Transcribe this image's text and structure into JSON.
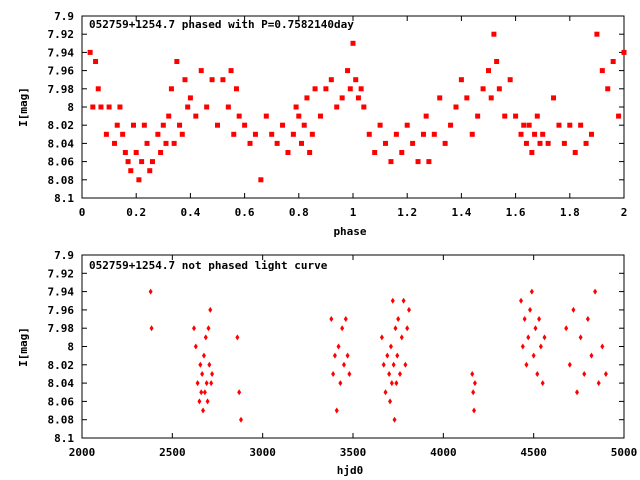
{
  "chart_data": [
    {
      "type": "scatter",
      "title": "052759+1254.7 phased with P=0.7582140day",
      "xlabel": "phase",
      "ylabel": "I[mag]",
      "xlim": [
        0,
        2
      ],
      "ylim": [
        8.1,
        7.9
      ],
      "y_inverted": true,
      "xticks": [
        "0",
        "0.2",
        "0.4",
        "0.6",
        "0.8",
        "1",
        "1.2",
        "1.4",
        "1.6",
        "1.8",
        "2"
      ],
      "yticks": [
        "7.9",
        "7.92",
        "7.94",
        "7.96",
        "7.98",
        "8",
        "8.02",
        "8.04",
        "8.06",
        "8.08",
        "8.1"
      ],
      "marker_color": "#ff0000",
      "series": [
        {
          "x": [
            0.03,
            0.04,
            0.05,
            0.06,
            0.07,
            0.09,
            0.1,
            0.12,
            0.13,
            0.14,
            0.15,
            0.16,
            0.17,
            0.18,
            0.19,
            0.2,
            0.21,
            0.22,
            0.23,
            0.24,
            0.25,
            0.26,
            0.28,
            0.29,
            0.3,
            0.31,
            0.32,
            0.33,
            0.34,
            0.35,
            0.36,
            0.37,
            0.38,
            0.39,
            0.4,
            0.42,
            0.44,
            0.46,
            0.48,
            0.5,
            0.52,
            0.54,
            0.55,
            0.56,
            0.57,
            0.58,
            0.6,
            0.62,
            0.64,
            0.66,
            0.68,
            0.7,
            0.72,
            0.74,
            0.76,
            0.78,
            0.79,
            0.8,
            0.81,
            0.82,
            0.83,
            0.84,
            0.85,
            0.86,
            0.88,
            0.9,
            0.92,
            0.94,
            0.96,
            0.98,
            0.99,
            1.0,
            1.01,
            1.02,
            1.03,
            1.04,
            1.06,
            1.08,
            1.1,
            1.12,
            1.14,
            1.16,
            1.18,
            1.2,
            1.22,
            1.24,
            1.26,
            1.27,
            1.28,
            1.3,
            1.32,
            1.34,
            1.36,
            1.38,
            1.4,
            1.42,
            1.44,
            1.46,
            1.48,
            1.5,
            1.51,
            1.52,
            1.53,
            1.54,
            1.56,
            1.58,
            1.6,
            1.62,
            1.63,
            1.64,
            1.65,
            1.66,
            1.67,
            1.68,
            1.69,
            1.7,
            1.72,
            1.74,
            1.76,
            1.78,
            1.8,
            1.82,
            1.84,
            1.86,
            1.88,
            1.9,
            1.92,
            1.94,
            1.96,
            1.98,
            2.0
          ],
          "y": [
            7.94,
            8.0,
            7.95,
            7.98,
            8.0,
            8.03,
            8.0,
            8.04,
            8.02,
            8.0,
            8.03,
            8.05,
            8.06,
            8.07,
            8.02,
            8.05,
            8.08,
            8.06,
            8.02,
            8.04,
            8.07,
            8.06,
            8.03,
            8.05,
            8.02,
            8.04,
            8.01,
            7.98,
            8.04,
            7.95,
            8.02,
            8.03,
            7.97,
            8.0,
            7.99,
            8.01,
            7.96,
            8.0,
            7.97,
            8.02,
            7.97,
            8.0,
            7.96,
            8.03,
            7.98,
            8.01,
            8.02,
            8.04,
            8.03,
            8.08,
            8.01,
            8.03,
            8.04,
            8.02,
            8.05,
            8.03,
            8.0,
            8.01,
            8.04,
            8.02,
            7.99,
            8.05,
            8.03,
            7.98,
            8.01,
            7.98,
            7.97,
            8.0,
            7.99,
            7.96,
            7.98,
            7.93,
            7.97,
            7.99,
            7.98,
            8.0,
            8.03,
            8.05,
            8.02,
            8.04,
            8.06,
            8.03,
            8.05,
            8.02,
            8.04,
            8.06,
            8.03,
            8.01,
            8.06,
            8.03,
            7.99,
            8.04,
            8.02,
            8.0,
            7.97,
            7.99,
            8.03,
            8.01,
            7.98,
            7.96,
            7.99,
            7.92,
            7.95,
            7.98,
            8.01,
            7.97,
            8.01,
            8.03,
            8.02,
            8.04,
            8.02,
            8.05,
            8.03,
            8.01,
            8.04,
            8.03,
            8.04,
            7.99,
            8.02,
            8.04,
            8.02,
            8.05,
            8.02,
            8.04,
            8.03,
            7.92,
            7.96,
            7.98,
            7.95,
            8.01,
            7.94
          ]
        }
      ]
    },
    {
      "type": "scatter",
      "title": "052759+1254.7 not phased light curve",
      "xlabel": "hjd0",
      "ylabel": "I[mag]",
      "xlim": [
        2000,
        5000
      ],
      "ylim": [
        8.1,
        7.9
      ],
      "y_inverted": true,
      "xticks": [
        "2000",
        "2500",
        "3000",
        "3500",
        "4000",
        "4500",
        "5000"
      ],
      "yticks": [
        "7.9",
        "7.92",
        "7.94",
        "7.96",
        "7.98",
        "8",
        "8.02",
        "8.04",
        "8.06",
        "8.08",
        "8.1"
      ],
      "marker_color": "#ff0000",
      "series": [
        {
          "x": [
            2380,
            2385,
            2620,
            2630,
            2640,
            2650,
            2655,
            2660,
            2665,
            2670,
            2675,
            2680,
            2685,
            2690,
            2695,
            2700,
            2705,
            2710,
            2715,
            2720,
            2860,
            2870,
            2880,
            3380,
            3390,
            3400,
            3410,
            3420,
            3430,
            3440,
            3450,
            3460,
            3470,
            3480,
            3660,
            3670,
            3680,
            3690,
            3700,
            3705,
            3710,
            3715,
            3720,
            3725,
            3730,
            3735,
            3740,
            3745,
            3750,
            3760,
            3770,
            3780,
            3790,
            3800,
            3810,
            4160,
            4165,
            4170,
            4175,
            4430,
            4440,
            4450,
            4460,
            4470,
            4480,
            4490,
            4500,
            4510,
            4520,
            4530,
            4540,
            4550,
            4560,
            4680,
            4700,
            4720,
            4740,
            4760,
            4780,
            4800,
            4820,
            4840,
            4860,
            4880,
            4900
          ],
          "y": [
            7.94,
            7.98,
            7.98,
            8.0,
            8.04,
            8.06,
            8.02,
            8.05,
            8.03,
            8.07,
            8.01,
            8.05,
            7.99,
            8.04,
            8.06,
            7.98,
            8.02,
            7.96,
            8.04,
            8.03,
            7.99,
            8.05,
            8.08,
            7.97,
            8.03,
            8.01,
            8.07,
            8.0,
            8.04,
            7.98,
            8.02,
            7.97,
            8.01,
            8.03,
            7.99,
            8.02,
            8.05,
            8.01,
            8.03,
            8.06,
            8.0,
            8.04,
            7.95,
            8.02,
            8.08,
            7.98,
            8.04,
            8.01,
            7.97,
            8.03,
            7.99,
            7.95,
            8.02,
            7.98,
            7.96,
            8.03,
            8.05,
            8.07,
            8.04,
            7.95,
            8.0,
            7.97,
            8.02,
            7.99,
            7.96,
            7.94,
            8.01,
            7.98,
            8.03,
            7.97,
            8.0,
            8.04,
            7.99,
            7.98,
            8.02,
            7.96,
            8.05,
            7.99,
            8.03,
            7.97,
            8.01,
            7.94,
            8.04,
            8.0,
            8.03
          ]
        }
      ]
    }
  ]
}
